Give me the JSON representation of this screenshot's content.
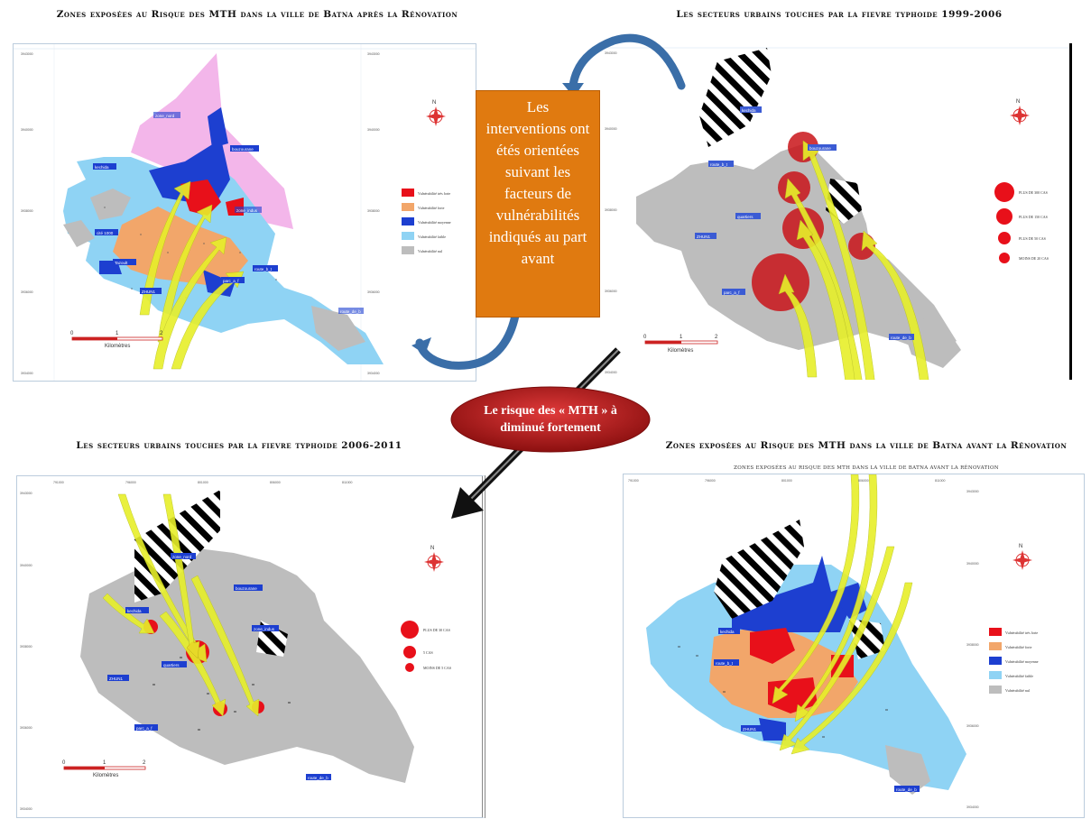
{
  "titles": {
    "top_left": "Zones exposées au Risque des MTH dans la ville de Batna après la Rénovation",
    "top_right": "Les secteurs urbains touches par la fievre typhoide 1999-2006",
    "bottom_left": "Les secteurs urbains touches par la fievre typhoide 2006-2011",
    "bottom_right": "Zones exposées au Risque des MTH dans la ville de Batna avant la Rénovation",
    "bottom_right_sub": "Zones exposées au risque des MTH dans la ville de Batna avant la rénovation"
  },
  "callout": {
    "text": "Les interventions ont étés orientées suivant les facteurs de vulnérabilités indiqués au part avant"
  },
  "risk_bubble": {
    "text": "Le risque des « MTH » à diminué fortement"
  },
  "vulnerability_legend": [
    {
      "label": "Vulnérabilité très forte",
      "color": "#e8101a"
    },
    {
      "label": "Vulnérabilité forte",
      "color": "#f2a66a"
    },
    {
      "label": "Vulnérabilité moyenne",
      "color": "#1d3fd0"
    },
    {
      "label": "Vulnérabilité faible",
      "color": "#8fd3f4"
    },
    {
      "label": "Vulnérabilité nul",
      "color": "#bdbdbd"
    }
  ],
  "cases_legend_1999": [
    "PLUS DE 300 CAS",
    "PLUS DE 150 CAS",
    "PLUS DE 50 CAS",
    "MOINS DE 20 CAS"
  ],
  "cases_legend_2006": [
    "PLUS DE 30 CAS",
    "5 CAS",
    "MOINS DE 5 CAS"
  ],
  "scale": {
    "ticks": [
      "0",
      "1",
      "2"
    ],
    "unit": "Kilomètres"
  },
  "coords": {
    "tl_left": [
      "3943000",
      "3940000",
      "3938000",
      "3936000",
      "3934000"
    ],
    "tl_right": [
      "3943000",
      "3940000",
      "3938000",
      "3936000",
      "3934000"
    ],
    "tr_left": [
      "3943000",
      "3940000",
      "3938000",
      "3936000",
      "3934000"
    ],
    "bl_top": [
      "791000",
      "796000",
      "801000",
      "806000",
      "811000"
    ],
    "bl_left": [
      "3943000",
      "3940000",
      "3938000",
      "3936000",
      "3934000"
    ],
    "br_top": [
      "791000",
      "796000",
      "801000",
      "806000",
      "811000"
    ],
    "br_right": [
      "3943000",
      "3940000",
      "3938000",
      "3936000",
      "3934000"
    ]
  },
  "place_labels": {
    "tl": [
      "zone_nord",
      "bouzourane",
      "kechida",
      "zone_indus",
      "cité 1000",
      "Tazoult",
      "route_b_t",
      "parc_a_f",
      "ZHUN1",
      "route_de_b"
    ],
    "tr": [
      "kechida",
      "bouzourane",
      "route_b_t",
      "quartiers",
      "ZHUN1",
      "route_de_b",
      "parc_a_f"
    ],
    "bl": [
      "zone_nord",
      "bouzourane",
      "kechida",
      "zone_indus",
      "quartiers",
      "ZHUN1",
      "route_de_b",
      "parc_a_f"
    ],
    "br": [
      "kechida",
      "route_b_t",
      "ZHUN1",
      "route_de_b"
    ]
  },
  "colors": {
    "callout_bg": "#e07a10",
    "bubble": "#b11a1a",
    "arrow_blue": "#3a6ea8",
    "yellow_arrow": "#e7ef2a",
    "city_gray": "#bdbdbd",
    "vuln_blue": "#1d3fd0",
    "vuln_light": "#8fd3f4",
    "vuln_orange": "#f2a66a",
    "pink": "#f3b6ea"
  }
}
